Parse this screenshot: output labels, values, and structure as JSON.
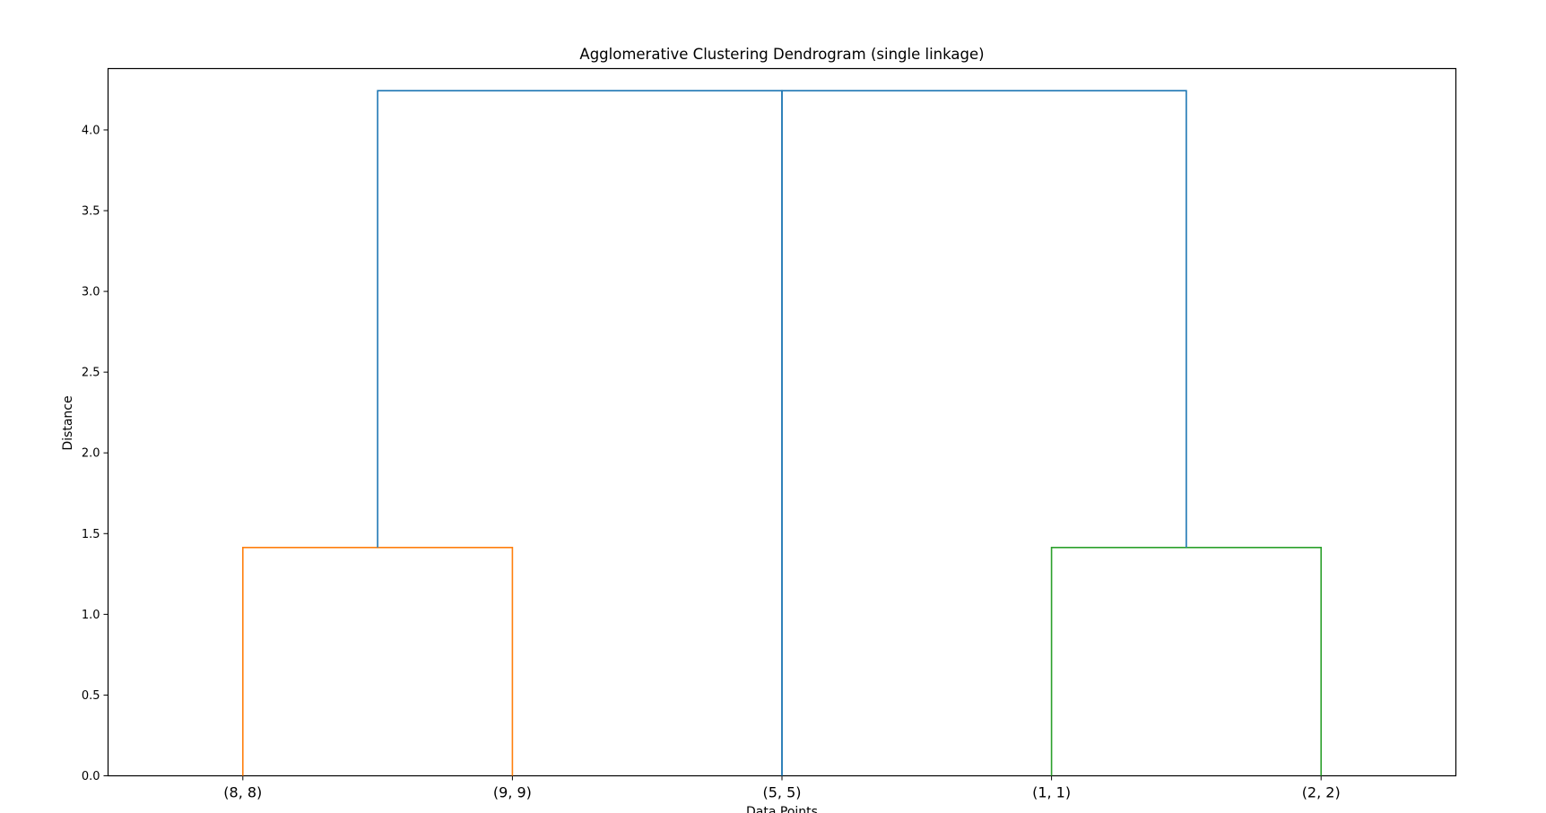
{
  "chart_data": {
    "type": "dendrogram",
    "title": "Agglomerative Clustering Dendrogram (single linkage)",
    "xlabel": "Data Points",
    "ylabel": "Distance",
    "ylim": [
      0,
      4.38
    ],
    "yticks": [
      "0.0",
      "0.5",
      "1.0",
      "1.5",
      "2.0",
      "2.5",
      "3.0",
      "3.5",
      "4.0"
    ],
    "grid": false,
    "leaves": [
      "(8, 8)",
      "(9, 9)",
      "(5, 5)",
      "(1, 1)",
      "(2, 2)"
    ],
    "merges": [
      {
        "left": "(8, 8)",
        "right": "(9, 9)",
        "distance": 1.414,
        "color": "#ff7f0e"
      },
      {
        "left": "(1, 1)",
        "right": "(2, 2)",
        "distance": 1.414,
        "color": "#2ca02c"
      },
      {
        "left": "cluster (8, 8)+(9, 9)",
        "right": "(5, 5)",
        "distance": 4.243,
        "color": "#1f77b4"
      },
      {
        "left": "(5, 5)",
        "right": "cluster (1, 1)+(2, 2)",
        "distance": 4.243,
        "color": "#1f77b4"
      }
    ]
  }
}
